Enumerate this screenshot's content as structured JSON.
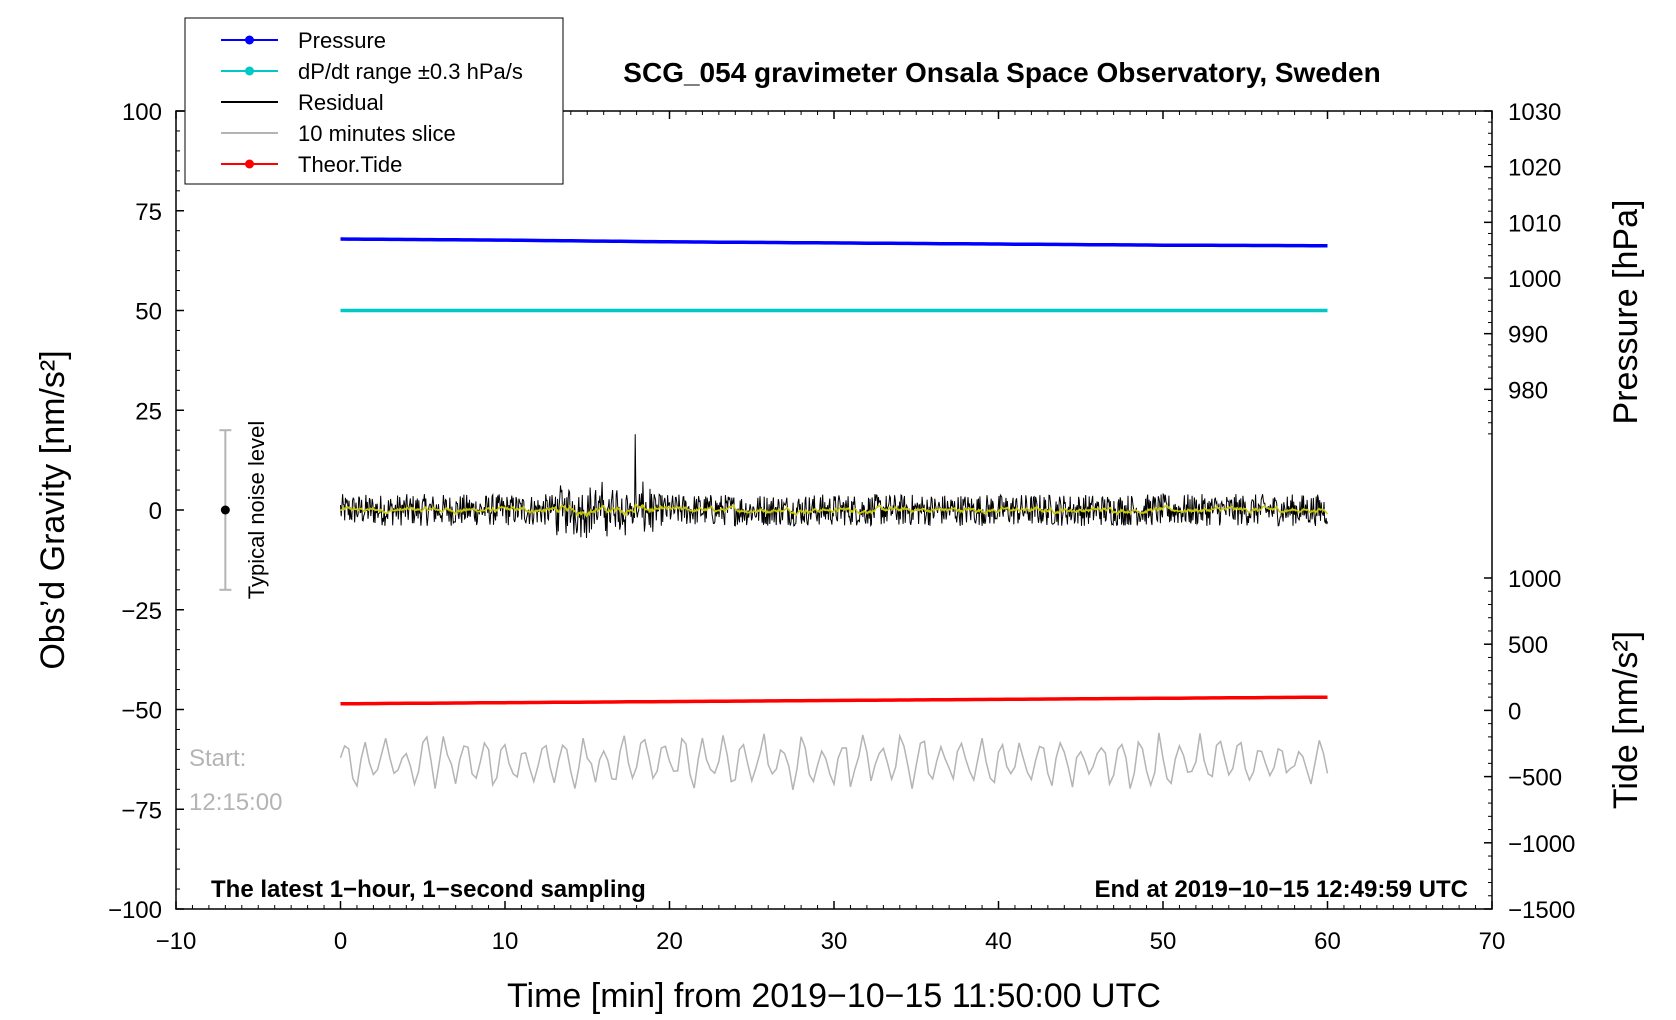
{
  "chart_data": {
    "type": "line",
    "title": "SCG_054 gravimeter Onsala Space Observatory, Sweden",
    "xlabel": "Time [min] from 2019−10−15 11:50:00 UTC",
    "ylabel_left": "Obs’d Gravity [nm/s²]",
    "ylabel_right_pressure": "Pressure [hPa]",
    "ylabel_right_tide": "Tide [nm/s²]",
    "xlim": [
      -10,
      70
    ],
    "ylim": [
      -100,
      100
    ],
    "x_ticks": [
      "−10",
      "0",
      "10",
      "20",
      "30",
      "40",
      "50",
      "60",
      "70"
    ],
    "x_tick_values": [
      -10,
      0,
      10,
      20,
      30,
      40,
      50,
      60,
      70
    ],
    "y_ticks": [
      "100",
      "75",
      "50",
      "25",
      "0",
      "−25",
      "−50",
      "−75",
      "−100"
    ],
    "y_tick_values": [
      100,
      75,
      50,
      25,
      0,
      -25,
      -50,
      -75,
      -100
    ],
    "pressure_axis": {
      "range": [
        970,
        1030
      ],
      "ticks": [
        "1030",
        "1020",
        "1010",
        "1000",
        "990",
        "980"
      ],
      "tick_values": [
        1030,
        1020,
        1010,
        1000,
        990,
        980
      ]
    },
    "tide_axis": {
      "range": [
        -1500,
        1000
      ],
      "ticks": [
        "1000",
        "500",
        "0",
        "−500",
        "−1000",
        "−1500"
      ],
      "tick_values": [
        1000,
        500,
        0,
        -500,
        -1000,
        -1500
      ]
    },
    "legend": {
      "placement": "top-left",
      "entries": [
        {
          "label": "Pressure",
          "color": "#0000ff",
          "marker": true
        },
        {
          "label": "dP/dt range ±0.3 hPa/s",
          "color": "#00c8c8",
          "marker": true
        },
        {
          "label": "Residual",
          "color": "#000000",
          "marker": false
        },
        {
          "label": "10 minutes slice",
          "color": "#b4b4b4",
          "marker": false
        },
        {
          "label": "Theor.Tide",
          "color": "#ff0000",
          "marker": true
        }
      ]
    },
    "series": [
      {
        "name": "Pressure",
        "axis": "pressure",
        "color": "#0000ff",
        "x": [
          0,
          10,
          20,
          30,
          40,
          50,
          60
        ],
        "values": [
          1007.0,
          1006.8,
          1006.5,
          1006.3,
          1006.1,
          1005.9,
          1005.8
        ]
      },
      {
        "name": "dP/dt range ±0.3 hPa/s",
        "axis": "gravity",
        "color": "#00c8c8",
        "x": [
          0,
          60
        ],
        "values": [
          50,
          50
        ]
      },
      {
        "name": "Residual",
        "axis": "gravity",
        "color": "#000000",
        "x": [
          0,
          60
        ],
        "values": [
          0,
          0
        ],
        "noise_amplitude": 4,
        "peak": {
          "x": 17.9,
          "max": 19,
          "min": -14
        }
      },
      {
        "name": "10 minutes slice",
        "axis": "gravity",
        "color": "#b4b4b4",
        "x": [
          0,
          60
        ],
        "values": [
          -63,
          -63
        ],
        "noise_amplitude": 6
      },
      {
        "name": "Theor.Tide",
        "axis": "tide",
        "color": "#ff0000",
        "x": [
          0,
          60
        ],
        "values": [
          50,
          100
        ]
      }
    ],
    "smoothed_color": "#c8c800",
    "noise_bar": {
      "label": "Typical noise level",
      "x": -7,
      "center": 0,
      "low": -20,
      "high": 20
    },
    "start_label": "Start:",
    "start_time": "12:15:00",
    "footer_left": "The latest 1−hour, 1−second sampling",
    "footer_right": "End at 2019−10−15 12:49:59 UTC"
  }
}
